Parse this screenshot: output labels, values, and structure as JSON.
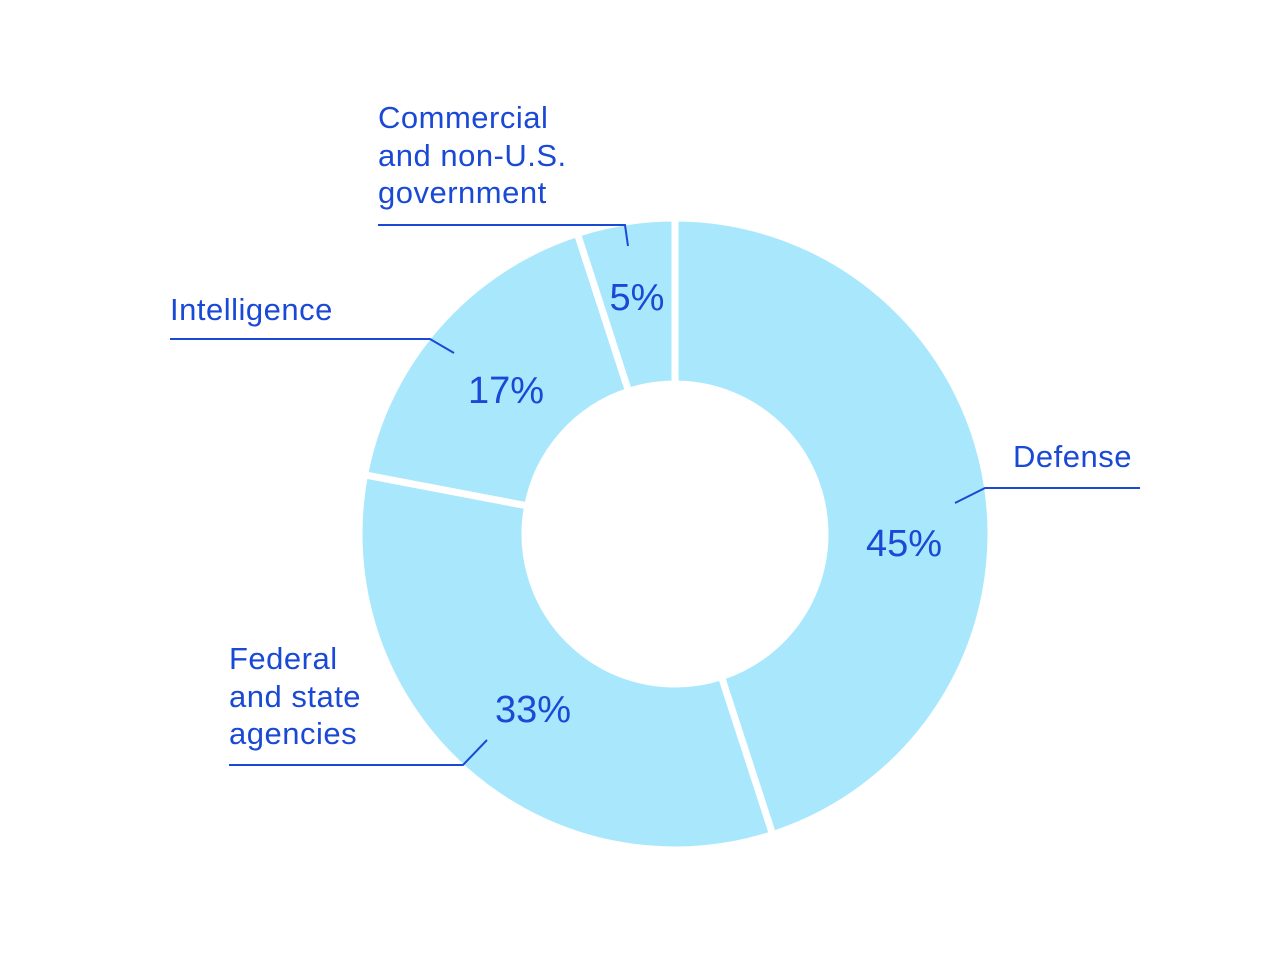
{
  "colors": {
    "slice_fill": "#a9e8fc",
    "text": "#1a49d6",
    "gap": "#ffffff"
  },
  "chart_data": {
    "type": "pie",
    "variant": "donut",
    "title": "",
    "slices": [
      {
        "label_lines": [
          "Defense"
        ],
        "value": 45,
        "value_label": "45%"
      },
      {
        "label_lines": [
          "Federal",
          "and state",
          "agencies"
        ],
        "value": 33,
        "value_label": "33%"
      },
      {
        "label_lines": [
          "Intelligence"
        ],
        "value": 17,
        "value_label": "17%"
      },
      {
        "label_lines": [
          "Commercial",
          "and non-U.S.",
          "government"
        ],
        "value": 5,
        "value_label": "5%"
      }
    ]
  }
}
